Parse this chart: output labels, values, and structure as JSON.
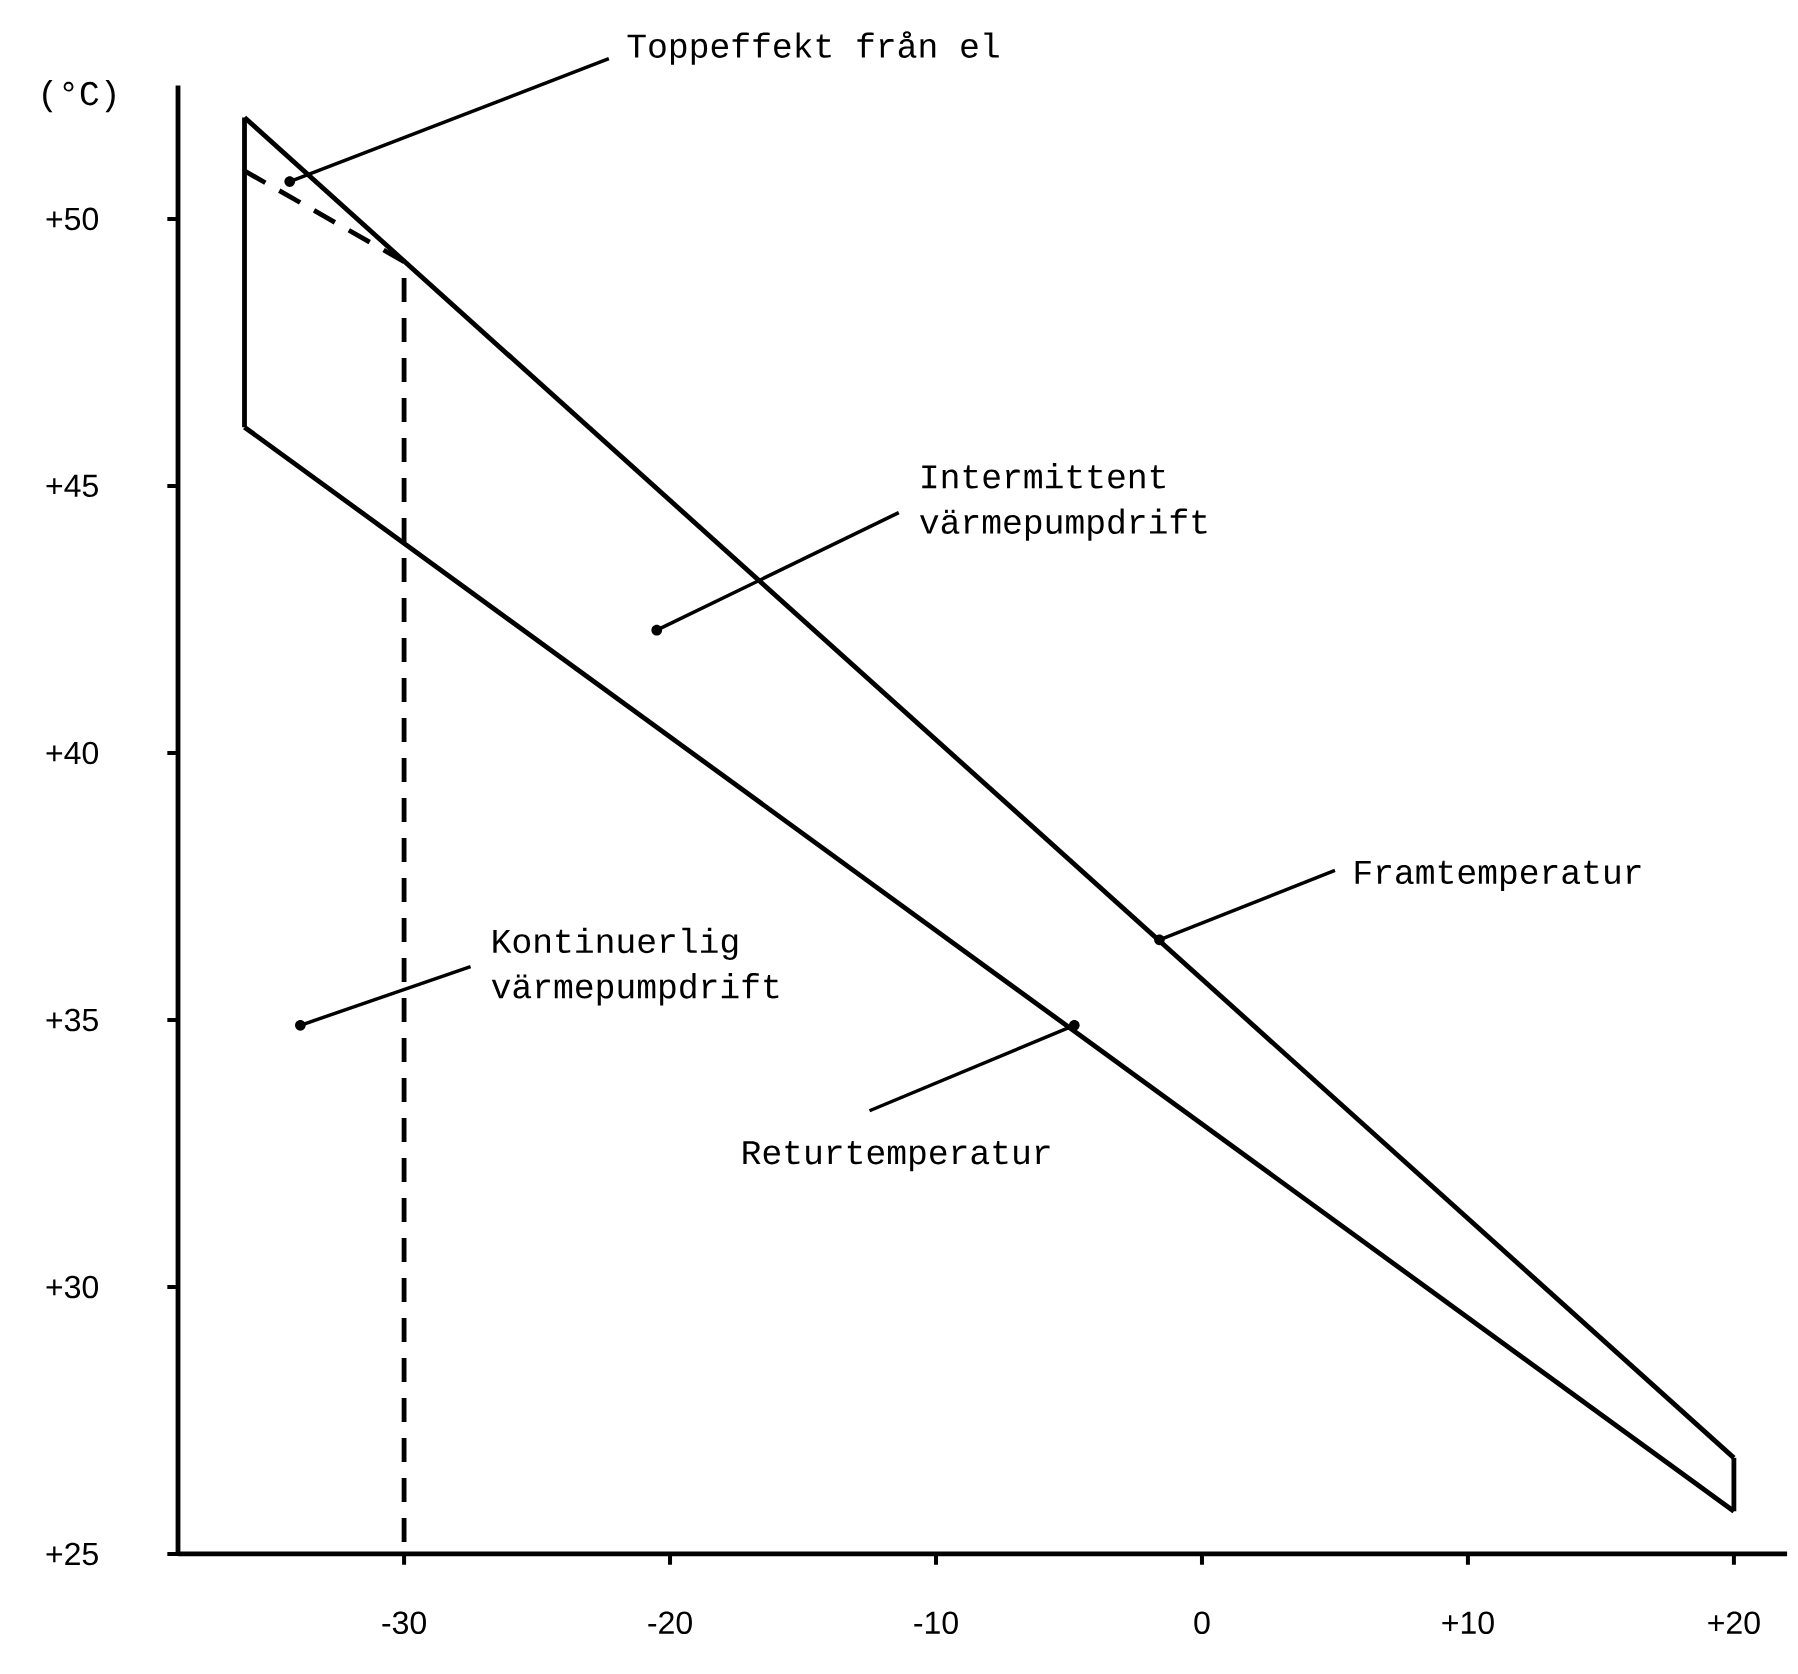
{
  "chart_data": {
    "type": "line",
    "ylabel": "(°C)",
    "xlim": [
      -38.5,
      22
    ],
    "ylim": [
      25,
      52.5
    ],
    "xticks": [
      -30,
      -20,
      -10,
      0,
      {
        "value": 10,
        "label": "+10"
      },
      {
        "value": 20,
        "label": "+20"
      }
    ],
    "yticks": [
      {
        "value": 25,
        "label": "+25"
      },
      {
        "value": 30,
        "label": "+30"
      },
      {
        "value": 35,
        "label": "+35"
      },
      {
        "value": 40,
        "label": "+40"
      },
      {
        "value": 45,
        "label": "+45"
      },
      {
        "value": 50,
        "label": "+50"
      }
    ],
    "series": [
      {
        "color": "#000000",
        "line_style": "solid",
        "x": [
          -36,
          20
        ],
        "values": [
          51.9,
          26.8
        ]
      },
      {
        "color": "#000000",
        "line_style": "solid",
        "x": [
          -36,
          20
        ],
        "values": [
          46.1,
          25.8
        ]
      },
      {
        "color": "#000000",
        "line_style": "solid",
        "x": [
          -36,
          -36
        ],
        "values": [
          46.1,
          51.9
        ]
      },
      {
        "color": "#000000",
        "line_style": "solid",
        "x": [
          20,
          20
        ],
        "values": [
          25.8,
          26.8
        ]
      },
      {
        "color": "#000000",
        "line_style": "dashed",
        "x": [
          -36,
          -30,
          -30
        ],
        "values": [
          50.9,
          49.2,
          25
        ]
      }
    ],
    "annotations": [
      {
        "text": "Toppeffekt från el",
        "x": -34.3,
        "y": 50.7
      },
      {
        "text": "Intermittent värmepumpdrift",
        "x": -20.5,
        "y": 42.3
      },
      {
        "text": "Framtemperatur",
        "x": -1.6,
        "y": 36.5
      },
      {
        "text": "Kontinuerlig värmepumpdrift",
        "x": -33.9,
        "y": 34.9
      },
      {
        "text": "Returtemperatur",
        "x": -4.8,
        "y": 34.9
      }
    ]
  }
}
